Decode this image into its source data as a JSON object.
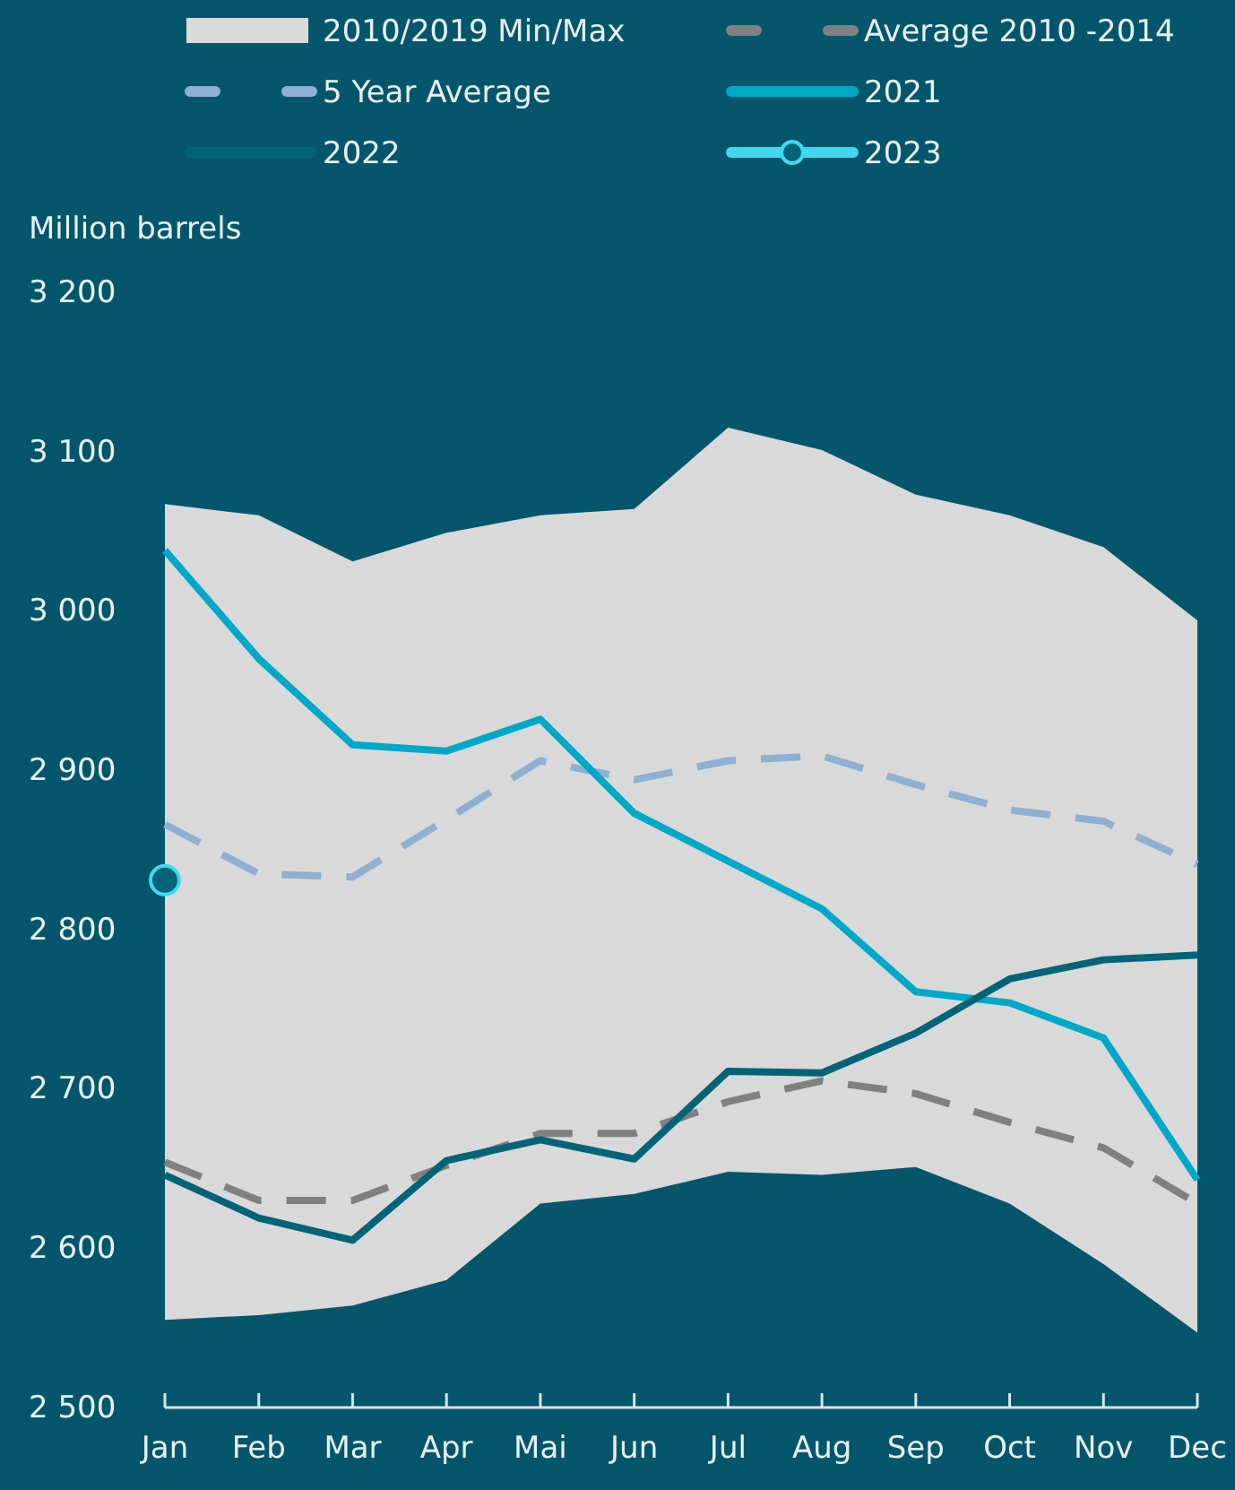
{
  "chart_data": {
    "type": "line",
    "ylabel": "Million barrels",
    "categories": [
      "Jan",
      "Feb",
      "Mar",
      "Apr",
      "Mai",
      "Jun",
      "Jul",
      "Aug",
      "Sep",
      "Oct",
      "Nov",
      "Dec"
    ],
    "ylim": [
      2500,
      3200
    ],
    "yticks": [
      {
        "value": 2500,
        "label": "2 500"
      },
      {
        "value": 2600,
        "label": "2 600"
      },
      {
        "value": 2700,
        "label": "2 700"
      },
      {
        "value": 2800,
        "label": "2 800"
      },
      {
        "value": 2900,
        "label": "2 900"
      },
      {
        "value": 3000,
        "label": "3 000"
      },
      {
        "value": 3100,
        "label": "3 100"
      },
      {
        "value": 3200,
        "label": "3 200"
      }
    ],
    "grid": false,
    "legend": "top",
    "marker": "none",
    "series": [
      {
        "name": "2010/2019 Min/Max",
        "type": "area",
        "color": "#d9d9d9",
        "values": [
          null,
          null,
          null,
          null,
          null,
          null,
          null,
          null,
          null,
          null,
          null,
          null
        ],
        "lower": [
          2555,
          2558,
          2564,
          2580,
          2628,
          2634,
          2648,
          2646,
          2651,
          2628,
          2590,
          2547
        ],
        "upper": [
          3067,
          3060,
          3031,
          3049,
          3060,
          3064,
          3115,
          3101,
          3073,
          3060,
          3040,
          2994
        ]
      },
      {
        "name": "Average 2010 -2014",
        "color": "#808080",
        "line_style": "dashed",
        "values": [
          2654,
          2630,
          2630,
          2652,
          2672,
          2672,
          2692,
          2705,
          2697,
          2679,
          2663,
          2628
        ]
      },
      {
        "name": "5 Year Average",
        "color": "#8fb0d0",
        "line_style": "dashed",
        "values": [
          2866,
          2835,
          2833,
          2869,
          2906,
          2894,
          2906,
          2909,
          2891,
          2875,
          2868,
          2841
        ]
      },
      {
        "name": "2021",
        "color": "#00a8c8",
        "line_style": "solid",
        "values": [
          3038,
          2970,
          2916,
          2912,
          2932,
          2873,
          2843,
          2813,
          2761,
          2754,
          2732,
          2643
        ]
      },
      {
        "name": "2022",
        "color": "#036478",
        "line_style": "solid",
        "values": [
          2646,
          2619,
          2605,
          2655,
          2668,
          2656,
          2711,
          2710,
          2735,
          2769,
          2781,
          2784
        ]
      },
      {
        "name": "2023",
        "color": "#40d8f0",
        "line_style": "solid",
        "marker": "circle",
        "values": [
          2831,
          null,
          null,
          null,
          null,
          null,
          null,
          null,
          null,
          null,
          null,
          null
        ]
      }
    ]
  }
}
